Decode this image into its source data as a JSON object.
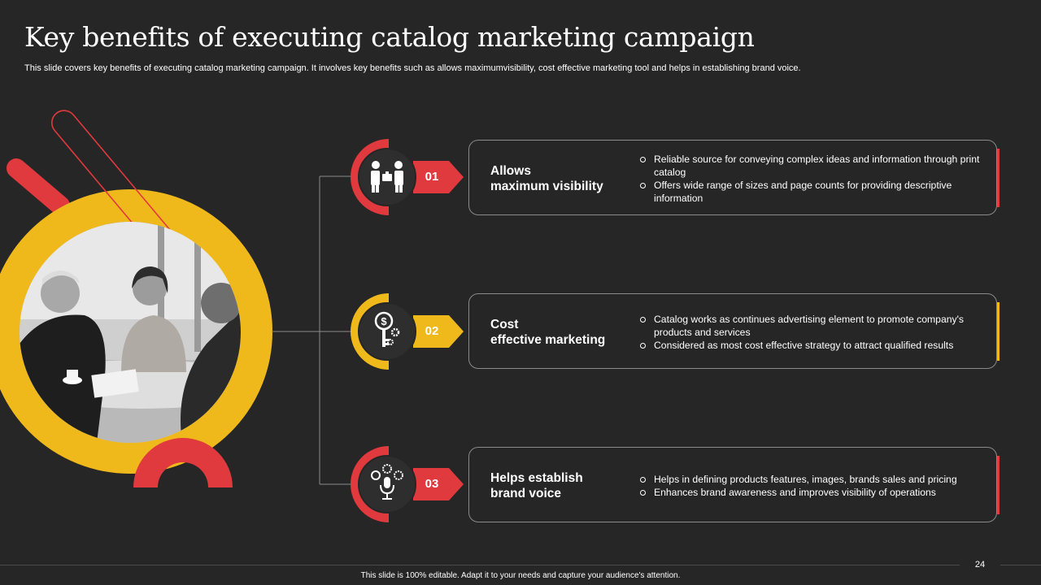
{
  "slide": {
    "title": "Key benefits of executing catalog marketing campaign",
    "subtitle": "This slide covers key benefits of executing catalog marketing campaign. It involves key benefits such as allows maximumvisibility, cost effective marketing tool and helps in establishing brand voice.",
    "page_number": "24",
    "footer_note": "This slide is 100% editable. Adapt it to your needs and capture your audience's attention."
  },
  "colors": {
    "background": "#262626",
    "red": "#e0393e",
    "yellow": "#f0b91b",
    "card_border": "#8a8a8a",
    "icon_circle": "#2e2e2e"
  },
  "benefits": [
    {
      "number": "01",
      "icon": "business-handshake-icon",
      "accent": "red",
      "title": "Allows\nmaximum visibility",
      "points": [
        "Reliable source for conveying complex ideas and information through print catalog",
        "Offers wide range of sizes and page counts for providing descriptive information"
      ]
    },
    {
      "number": "02",
      "icon": "dollar-key-gear-icon",
      "accent": "yellow",
      "title": "Cost\neffective marketing",
      "points": [
        "Catalog works as continues advertising element to promote company's products and services",
        "Considered as most cost effective strategy to attract qualified results"
      ]
    },
    {
      "number": "03",
      "icon": "microphone-brand-icon",
      "accent": "red",
      "title": "Helps establish\nbrand voice",
      "points": [
        "Helps in defining products features, images, brands sales and pricing",
        "Enhances brand awareness and improves visibility of operations"
      ]
    }
  ]
}
